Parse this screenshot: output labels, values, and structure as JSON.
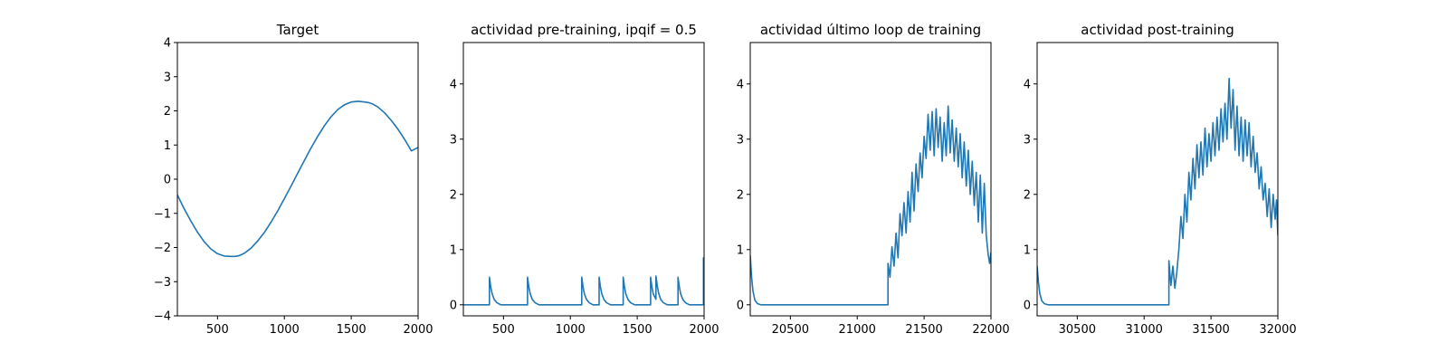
{
  "chart_data": [
    {
      "type": "line",
      "title": "Target",
      "xlim": [
        200,
        2000
      ],
      "ylim": [
        -4,
        4
      ],
      "xticks": [
        500,
        1000,
        1500,
        2000
      ],
      "yticks": [
        -4,
        -3,
        -2,
        -1,
        0,
        1,
        2,
        3,
        4
      ],
      "color": "#1f77b4",
      "series": [
        {
          "x": [
            200,
            250,
            300,
            350,
            400,
            450,
            500,
            550,
            600,
            630,
            660,
            700,
            750,
            800,
            850,
            900,
            950,
            1000,
            1050,
            1100,
            1150,
            1200,
            1250,
            1300,
            1350,
            1400,
            1450,
            1500,
            1550,
            1600,
            1630,
            1660,
            1700,
            1750,
            1800,
            1850,
            1900,
            1950,
            2000
          ],
          "y": [
            -0.46,
            -0.86,
            -1.22,
            -1.55,
            -1.83,
            -2.04,
            -2.18,
            -2.25,
            -2.26,
            -2.26,
            -2.24,
            -2.17,
            -2.02,
            -1.81,
            -1.56,
            -1.26,
            -0.93,
            -0.57,
            -0.2,
            0.18,
            0.55,
            0.92,
            1.26,
            1.57,
            1.83,
            2.04,
            2.18,
            2.26,
            2.28,
            2.26,
            2.24,
            2.2,
            2.11,
            1.94,
            1.72,
            1.46,
            1.16,
            0.83,
            0.93
          ]
        }
      ]
    },
    {
      "type": "line",
      "title": "actividad pre-training, ipqif = 0.5",
      "xlim": [
        200,
        2000
      ],
      "ylim": [
        -0.2,
        4.75
      ],
      "xticks": [
        500,
        1000,
        1500,
        2000
      ],
      "yticks": [
        0,
        1,
        2,
        3,
        4
      ],
      "color": "#1f77b4",
      "series": [
        {
          "x": [
            200,
            395,
            395,
            405,
            415,
            430,
            450,
            480,
            680,
            680,
            690,
            700,
            715,
            735,
            765,
            1085,
            1085,
            1095,
            1105,
            1120,
            1140,
            1170,
            1215,
            1215,
            1225,
            1235,
            1250,
            1270,
            1300,
            1395,
            1395,
            1405,
            1415,
            1430,
            1450,
            1480,
            1600,
            1600,
            1610,
            1620,
            1640,
            1640,
            1650,
            1660,
            1675,
            1695,
            1725,
            1805,
            1805,
            1815,
            1825,
            1840,
            1860,
            1890,
            1995,
            1995,
            2000
          ],
          "y": [
            0,
            0,
            0.5,
            0.32,
            0.2,
            0.1,
            0.04,
            0,
            0,
            0.5,
            0.32,
            0.2,
            0.1,
            0.04,
            0,
            0,
            0.5,
            0.32,
            0.2,
            0.1,
            0.04,
            0,
            0,
            0.5,
            0.32,
            0.2,
            0.1,
            0.04,
            0,
            0,
            0.5,
            0.32,
            0.2,
            0.1,
            0.04,
            0,
            0,
            0.5,
            0.32,
            0.2,
            0.1,
            0.52,
            0.34,
            0.21,
            0.1,
            0.04,
            0,
            0,
            0.5,
            0.32,
            0.2,
            0.1,
            0.04,
            0,
            0,
            0.85,
            0.6
          ]
        }
      ]
    },
    {
      "type": "line",
      "title": "actividad último loop de training",
      "xlim": [
        20200,
        22000
      ],
      "ylim": [
        -0.2,
        4.75
      ],
      "xticks": [
        20500,
        21000,
        21500,
        22000
      ],
      "yticks": [
        0,
        1,
        2,
        3,
        4
      ],
      "color": "#1f77b4",
      "series": [
        {
          "x": [
            20200,
            20210,
            20220,
            20235,
            20255,
            20280,
            21230,
            21230,
            21245,
            21260,
            21275,
            21290,
            21305,
            21320,
            21335,
            21350,
            21365,
            21380,
            21395,
            21410,
            21425,
            21440,
            21455,
            21470,
            21485,
            21500,
            21515,
            21530,
            21545,
            21560,
            21575,
            21590,
            21605,
            21620,
            21635,
            21650,
            21665,
            21680,
            21695,
            21710,
            21725,
            21740,
            21755,
            21770,
            21785,
            21800,
            21815,
            21830,
            21845,
            21860,
            21875,
            21890,
            21905,
            21920,
            21935,
            21950,
            21965,
            21980,
            21990,
            22000
          ],
          "y": [
            0.9,
            0.5,
            0.25,
            0.08,
            0.02,
            0,
            0,
            0.75,
            0.5,
            1.05,
            0.7,
            1.3,
            0.85,
            1.65,
            1.25,
            1.85,
            1.3,
            2.05,
            1.5,
            2.4,
            1.7,
            2.55,
            2.05,
            2.75,
            2.3,
            3.05,
            2.65,
            3.45,
            2.8,
            3.5,
            2.7,
            3.55,
            2.85,
            3.4,
            2.6,
            3.3,
            2.7,
            3.6,
            2.75,
            3.35,
            2.6,
            3.2,
            2.5,
            3.1,
            2.3,
            2.95,
            2.15,
            2.8,
            2.0,
            2.6,
            1.8,
            2.4,
            1.5,
            2.35,
            1.3,
            2.2,
            1.25,
            0.9,
            0.75,
            0.95
          ]
        }
      ]
    },
    {
      "type": "line",
      "title": "actividad post-training",
      "xlim": [
        30200,
        32000
      ],
      "ylim": [
        -0.2,
        4.75
      ],
      "xticks": [
        30500,
        31000,
        31500,
        32000
      ],
      "yticks": [
        0,
        1,
        2,
        3,
        4
      ],
      "color": "#1f77b4",
      "series": [
        {
          "x": [
            30200,
            30210,
            30220,
            30235,
            30255,
            30280,
            31185,
            31185,
            31200,
            31215,
            31230,
            31245,
            31260,
            31275,
            31290,
            31305,
            31320,
            31335,
            31350,
            31365,
            31380,
            31395,
            31410,
            31425,
            31440,
            31455,
            31470,
            31485,
            31500,
            31515,
            31530,
            31545,
            31560,
            31575,
            31590,
            31605,
            31620,
            31635,
            31650,
            31665,
            31680,
            31695,
            31710,
            31725,
            31740,
            31755,
            31770,
            31785,
            31800,
            31815,
            31830,
            31845,
            31860,
            31875,
            31890,
            31905,
            31920,
            31935,
            31950,
            31965,
            31980,
            31990,
            32000
          ],
          "y": [
            0.7,
            0.4,
            0.2,
            0.07,
            0.02,
            0,
            0,
            0.8,
            0.35,
            0.7,
            0.3,
            0.6,
            1.0,
            1.6,
            1.2,
            2.0,
            1.5,
            2.4,
            1.9,
            2.65,
            2.1,
            2.9,
            2.3,
            2.95,
            2.35,
            3.2,
            2.5,
            3.1,
            2.6,
            3.3,
            2.7,
            3.4,
            2.8,
            3.55,
            2.95,
            3.65,
            3.0,
            4.1,
            3.2,
            3.9,
            2.8,
            3.6,
            2.7,
            3.4,
            2.6,
            3.35,
            2.7,
            3.3,
            2.5,
            3.05,
            2.4,
            2.75,
            2.1,
            2.5,
            1.9,
            2.2,
            1.6,
            2.1,
            1.4,
            2.0,
            1.55,
            1.9,
            1.25
          ]
        }
      ]
    }
  ]
}
